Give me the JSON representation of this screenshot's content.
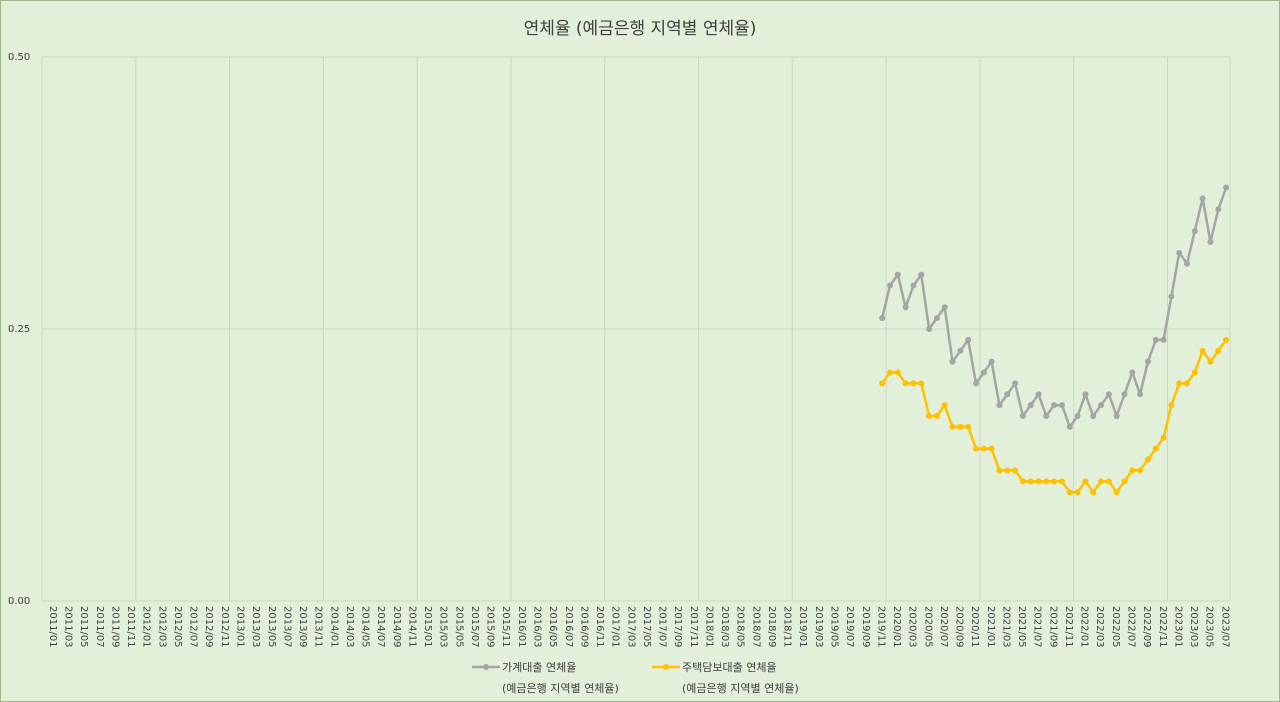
{
  "chart_data": {
    "type": "line",
    "title": "연체율 (예금은행 지역별 연체율)",
    "xlabel": "",
    "ylabel": "",
    "ylim": [
      0,
      0.5
    ],
    "yticks": [
      "0.00",
      "0.25",
      "0.50"
    ],
    "grid": "vertical at each year start, horizontal at y ticks",
    "legend_position": "bottom",
    "x_start": "2011/01",
    "x_end": "2023/08",
    "x_tick_every_months": 2,
    "series": [
      {
        "name": "가계대출 연체율",
        "name_line2": "(예금은행 지역별 연체율)",
        "color": "#a5a5a5",
        "x": [
          "2019/12",
          "2020/01",
          "2020/02",
          "2020/03",
          "2020/04",
          "2020/05",
          "2020/06",
          "2020/07",
          "2020/08",
          "2020/09",
          "2020/10",
          "2020/11",
          "2020/12",
          "2021/01",
          "2021/02",
          "2021/03",
          "2021/04",
          "2021/05",
          "2021/06",
          "2021/07",
          "2021/08",
          "2021/09",
          "2021/10",
          "2021/11",
          "2021/12",
          "2022/01",
          "2022/02",
          "2022/03",
          "2022/04",
          "2022/05",
          "2022/06",
          "2022/07",
          "2022/08",
          "2022/09",
          "2022/10",
          "2022/11",
          "2022/12",
          "2023/01",
          "2023/02",
          "2023/03",
          "2023/04",
          "2023/05",
          "2023/06",
          "2023/07",
          "2023/08"
        ],
        "values": [
          0.26,
          0.29,
          0.3,
          0.27,
          0.29,
          0.3,
          0.25,
          0.26,
          0.27,
          0.22,
          0.23,
          0.24,
          0.2,
          0.21,
          0.22,
          0.18,
          0.19,
          0.2,
          0.17,
          0.18,
          0.19,
          0.17,
          0.18,
          0.18,
          0.16,
          0.17,
          0.19,
          0.17,
          0.18,
          0.19,
          0.17,
          0.19,
          0.21,
          0.19,
          0.22,
          0.24,
          0.24,
          0.28,
          0.32,
          0.31,
          0.34,
          0.37,
          0.33,
          0.36,
          0.38
        ]
      },
      {
        "name": "주택담보대출 연체율",
        "name_line2": "(예금은행 지역별 연체율)",
        "color": "#ffc000",
        "x": [
          "2019/12",
          "2020/01",
          "2020/02",
          "2020/03",
          "2020/04",
          "2020/05",
          "2020/06",
          "2020/07",
          "2020/08",
          "2020/09",
          "2020/10",
          "2020/11",
          "2020/12",
          "2021/01",
          "2021/02",
          "2021/03",
          "2021/04",
          "2021/05",
          "2021/06",
          "2021/07",
          "2021/08",
          "2021/09",
          "2021/10",
          "2021/11",
          "2021/12",
          "2022/01",
          "2022/02",
          "2022/03",
          "2022/04",
          "2022/05",
          "2022/06",
          "2022/07",
          "2022/08",
          "2022/09",
          "2022/10",
          "2022/11",
          "2022/12",
          "2023/01",
          "2023/02",
          "2023/03",
          "2023/04",
          "2023/05",
          "2023/06",
          "2023/07",
          "2023/08"
        ],
        "values": [
          0.2,
          0.21,
          0.21,
          0.2,
          0.2,
          0.2,
          0.17,
          0.17,
          0.18,
          0.16,
          0.16,
          0.16,
          0.14,
          0.14,
          0.14,
          0.12,
          0.12,
          0.12,
          0.11,
          0.11,
          0.11,
          0.11,
          0.11,
          0.11,
          0.1,
          0.1,
          0.11,
          0.1,
          0.11,
          0.11,
          0.1,
          0.11,
          0.12,
          0.12,
          0.13,
          0.14,
          0.15,
          0.18,
          0.2,
          0.2,
          0.21,
          0.23,
          0.22,
          0.23,
          0.24
        ]
      }
    ]
  }
}
